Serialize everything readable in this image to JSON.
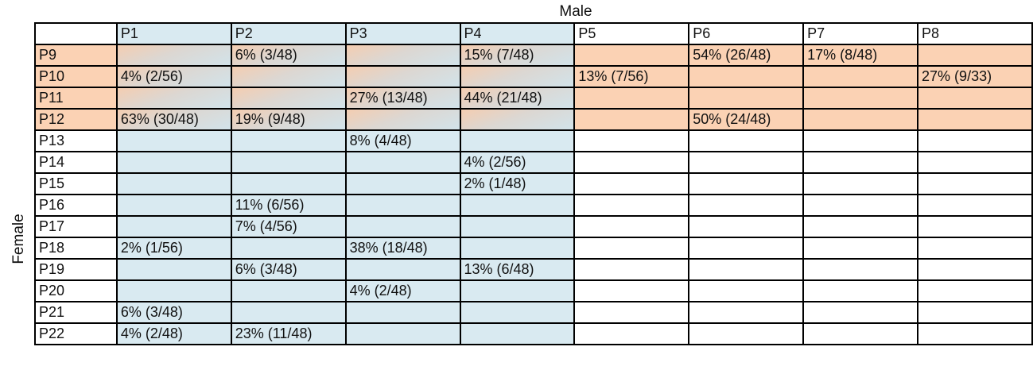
{
  "labels": {
    "column_axis": "Male",
    "row_axis": "Female"
  },
  "colors": {
    "blue": "#d9eaf1",
    "orange": "#fbd2b4",
    "border": "#000000"
  },
  "columns": [
    "P1",
    "P2",
    "P3",
    "P4",
    "P5",
    "P6",
    "P7",
    "P8"
  ],
  "highlighted_columns": [
    "P1",
    "P2",
    "P3",
    "P4"
  ],
  "highlighted_rows": [
    "P9",
    "P10",
    "P11",
    "P12"
  ],
  "rows": [
    {
      "label": "P9",
      "cells": [
        "",
        "6% (3/48)",
        "",
        "15% (7/48)",
        "",
        "54% (26/48)",
        "17% (8/48)",
        ""
      ]
    },
    {
      "label": "P10",
      "cells": [
        "4% (2/56)",
        "",
        "",
        "",
        "13% (7/56)",
        "",
        "",
        "27% (9/33)"
      ]
    },
    {
      "label": "P11",
      "cells": [
        "",
        "",
        "27% (13/48)",
        "44% (21/48)",
        "",
        "",
        "",
        ""
      ]
    },
    {
      "label": "P12",
      "cells": [
        "63% (30/48)",
        "19% (9/48)",
        "",
        "",
        "",
        "50% (24/48)",
        "",
        ""
      ]
    },
    {
      "label": "P13",
      "cells": [
        "",
        "",
        "8% (4/48)",
        "",
        "",
        "",
        "",
        ""
      ]
    },
    {
      "label": "P14",
      "cells": [
        "",
        "",
        "",
        "4% (2/56)",
        "",
        "",
        "",
        ""
      ]
    },
    {
      "label": "P15",
      "cells": [
        "",
        "",
        "",
        "2% (1/48)",
        "",
        "",
        "",
        ""
      ]
    },
    {
      "label": "P16",
      "cells": [
        "",
        "11% (6/56)",
        "",
        "",
        "",
        "",
        "",
        ""
      ]
    },
    {
      "label": "P17",
      "cells": [
        "",
        "7% (4/56)",
        "",
        "",
        "",
        "",
        "",
        ""
      ]
    },
    {
      "label": "P18",
      "cells": [
        "2% (1/56)",
        "",
        "38% (18/48)",
        "",
        "",
        "",
        "",
        ""
      ]
    },
    {
      "label": "P19",
      "cells": [
        "",
        "6% (3/48)",
        "",
        "13% (6/48)",
        "",
        "",
        "",
        ""
      ]
    },
    {
      "label": "P20",
      "cells": [
        "",
        "",
        "4% (2/48)",
        "",
        "",
        "",
        "",
        ""
      ]
    },
    {
      "label": "P21",
      "cells": [
        "6% (3/48)",
        "",
        "",
        "",
        "",
        "",
        "",
        ""
      ]
    },
    {
      "label": "P22",
      "cells": [
        "4% (2/48)",
        "23% (11/48)",
        "",
        "",
        "",
        "",
        "",
        ""
      ]
    }
  ]
}
